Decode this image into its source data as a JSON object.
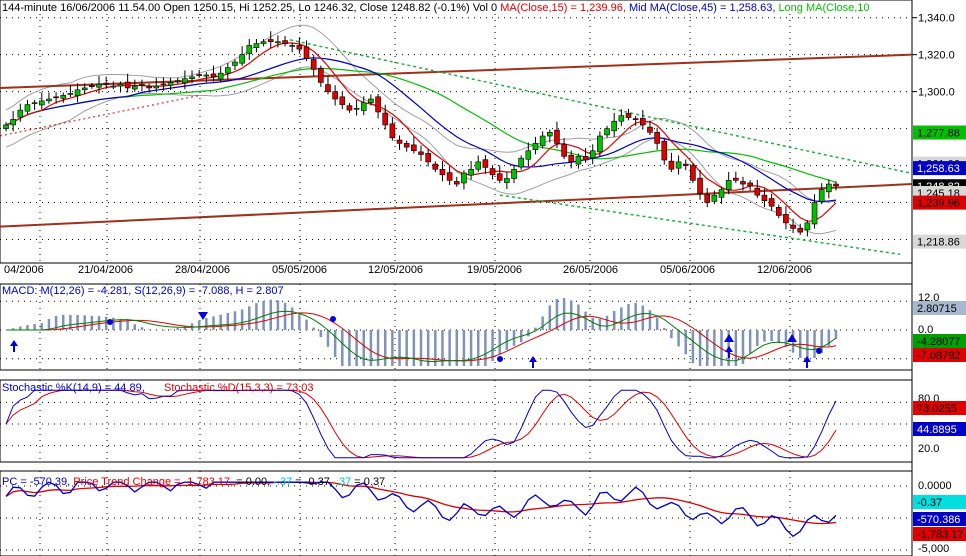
{
  "chart_data": [
    {
      "type": "candlestick",
      "header": {
        "prefix": "144-minute 16/06/2006 11.54.00 Open 1250.15, Hi 1252.25, Lo 1246.32, Close 1248.82 (-0.1%) Vol 0",
        "ma15": "MA(Close,15) = 1,239.96,",
        "ma45": "Mid MA(Close,45) = 1,258.63,",
        "ma10": "Long MA(Close,10"
      },
      "y_ticks": [
        "1,340.0",
        "1,320.0",
        "1,300.0"
      ],
      "ylim": [
        1210,
        1342
      ],
      "x_labels": [
        "04/2006",
        "21/04/2006",
        "28/04/2006",
        "05/05/2006",
        "12/05/2006",
        "19/05/2006",
        "26/05/2006",
        "05/06/2006",
        "12/06/2006"
      ],
      "price_tags": [
        {
          "label": "1,277.88",
          "value": 1277.88,
          "bg": "#00c000",
          "fg": "#000000"
        },
        {
          "label": "1,261.06",
          "value": 1261.06,
          "bg": "#d8d8d8",
          "fg": "#000000"
        },
        {
          "label": "1,258.63",
          "value": 1258.63,
          "bg": "#0000c8",
          "fg": "#ffffff"
        },
        {
          "label": "1,248.82",
          "value": 1248.82,
          "bg": "#000000",
          "fg": "#ffffff"
        },
        {
          "label": "1,245.18",
          "value": 1245.18,
          "bg": "#d8d8d8",
          "fg": "#000000"
        },
        {
          "label": "1,239.96",
          "value": 1239.96,
          "bg": "#e00000",
          "fg": "#000000"
        },
        {
          "label": "1,218.86",
          "value": 1218.86,
          "bg": "#d8d8d8",
          "fg": "#000000"
        }
      ],
      "close_series": [
        1282,
        1285,
        1290,
        1293,
        1294,
        1295,
        1296,
        1297,
        1298,
        1299,
        1301,
        1302,
        1303,
        1304,
        1304,
        1303,
        1304,
        1302,
        1303,
        1304,
        1302,
        1303,
        1304,
        1305,
        1306,
        1307,
        1308,
        1309,
        1309,
        1308,
        1310,
        1313,
        1316,
        1320,
        1325,
        1326,
        1327,
        1327,
        1327,
        1326,
        1325,
        1323,
        1318,
        1312,
        1305,
        1300,
        1296,
        1293,
        1290,
        1291,
        1294,
        1296,
        1289,
        1282,
        1275,
        1272,
        1270,
        1268,
        1266,
        1262,
        1258,
        1255,
        1252,
        1250,
        1256,
        1258,
        1262,
        1259,
        1255,
        1252,
        1253,
        1258,
        1264,
        1268,
        1272,
        1276,
        1278,
        1272,
        1265,
        1262,
        1265,
        1263,
        1268,
        1276,
        1280,
        1284,
        1287,
        1286,
        1285,
        1282,
        1278,
        1272,
        1263,
        1258,
        1262,
        1260,
        1252,
        1245,
        1240,
        1244,
        1247,
        1252,
        1252,
        1250,
        1249,
        1244,
        1241,
        1238,
        1233,
        1229,
        1226,
        1224,
        1229,
        1240,
        1247,
        1250,
        1249
      ]
    },
    {
      "type": "line",
      "title": "MACD: M(12,26) = -4.281, S(12,26,9) = -7.088, H = 2.807",
      "y_ticks": [
        "12.0",
        "0.0"
      ],
      "tags": [
        {
          "label": "2.80715",
          "bg": "#a8b8d0",
          "fg": "#000000"
        },
        {
          "label": "-4.28077",
          "bg": "#00a000",
          "fg": "#000000"
        },
        {
          "label": "-7.08792",
          "bg": "#e00000",
          "fg": "#000000"
        }
      ]
    },
    {
      "type": "line",
      "title_k": "Stochastic %K(14,9) = 44.89,",
      "title_d": "Stochastic %D(15,3,3) = 73.03",
      "y_ticks": [
        "80.0",
        "20.0"
      ],
      "tags": [
        {
          "label": "73.0255",
          "bg": "#e00000",
          "fg": "#000000"
        },
        {
          "label": "44.8895",
          "bg": "#0000c8",
          "fg": "#ffffff"
        }
      ]
    },
    {
      "type": "line",
      "title_pc": "PC = -570.39,",
      "title_ptc": "Price Trend Change = -1,783.17,",
      "title_rest1": "= 0.00,",
      "title_rest2": "-.37",
      "title_rest3": "= -0.37,",
      "title_rest4": ".37",
      "title_rest5": "= 0.37",
      "y_ticks": [
        "0.0000",
        "-5,000"
      ],
      "tags": [
        {
          "label": "-0.37",
          "bg": "#00e0e0",
          "fg": "#000000"
        },
        {
          "label": "-570.386",
          "bg": "#0000c8",
          "fg": "#ffffff"
        },
        {
          "label": "-1,783.17",
          "bg": "#e00000",
          "fg": "#000000"
        }
      ]
    }
  ]
}
